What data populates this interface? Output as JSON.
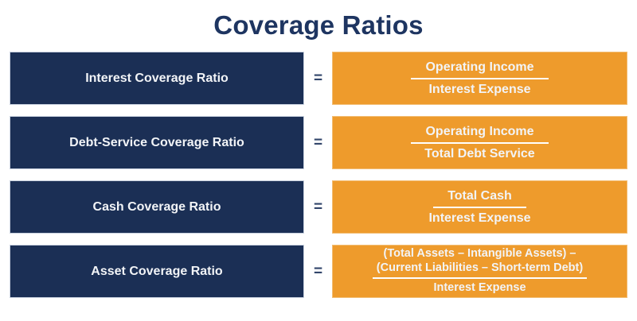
{
  "title": "Coverage Ratios",
  "equals_sign": "=",
  "colors": {
    "navy": "#1B2F55",
    "orange": "#EE9B2C",
    "title": "#1E3561",
    "equals": "#32466B",
    "box_text": "#F2F4F7",
    "fraction_line": "#FFFFFF"
  },
  "rows": [
    {
      "label": "Interest Coverage Ratio",
      "numerator_lines": [
        "Operating Income"
      ],
      "denominator": "Interest Expense"
    },
    {
      "label": "Debt-Service Coverage Ratio",
      "numerator_lines": [
        "Operating Income"
      ],
      "denominator": "Total Debt Service"
    },
    {
      "label": "Cash Coverage Ratio",
      "numerator_lines": [
        "Total Cash"
      ],
      "denominator": "Interest Expense"
    },
    {
      "label": "Asset Coverage Ratio",
      "numerator_lines": [
        "(Total Assets – Intangible Assets) –",
        "(Current Liabilities – Short-term Debt)"
      ],
      "denominator": "Interest Expense"
    }
  ]
}
